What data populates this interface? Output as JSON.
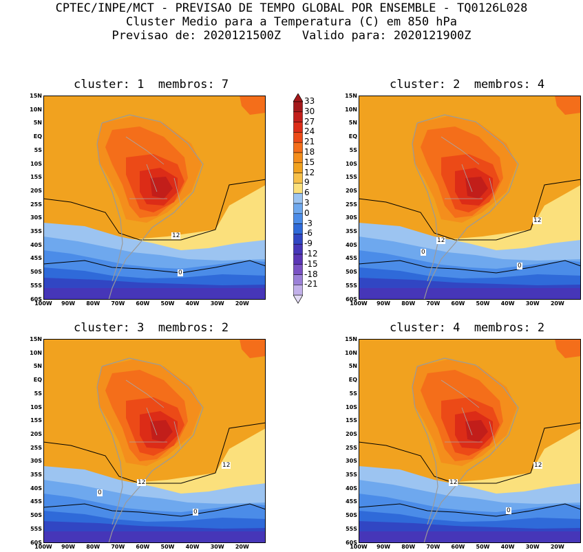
{
  "header": {
    "line1": "CPTEC/INPE/MCT - PREVISAO DE TEMPO GLOBAL POR ENSEMBLE - TQ0126L028",
    "line2": "Cluster Medio para a Temperatura (C) em 850 hPa",
    "line3": "Previsao de: 2020121500Z   Valido para: 2020121900Z"
  },
  "panels": [
    {
      "title": "cluster: 1  membros: 7",
      "contour_12": "12",
      "contour_0": "0"
    },
    {
      "title": "cluster: 2  membros: 4",
      "contour_12": "12",
      "contour_12b": "12",
      "contour_0": "0",
      "contour_0b": "0"
    },
    {
      "title": "cluster: 3  membros: 2",
      "contour_12": "12",
      "contour_12b": "12",
      "contour_0": "0",
      "contour_0b": "0"
    },
    {
      "title": "cluster: 4  membros: 2",
      "contour_12": "12",
      "contour_12b": "12",
      "contour_0": "0"
    }
  ],
  "lat_ticks": [
    "15N",
    "10N",
    "5N",
    "EQ",
    "5S",
    "10S",
    "15S",
    "20S",
    "25S",
    "30S",
    "35S",
    "40S",
    "45S",
    "50S",
    "55S",
    "60S"
  ],
  "lon_ticks": [
    "100W",
    "90W",
    "80W",
    "70W",
    "60W",
    "50W",
    "40W",
    "30W",
    "20W"
  ],
  "colorbar": {
    "labels": [
      "33",
      "30",
      "27",
      "24",
      "21",
      "18",
      "15",
      "12",
      "9",
      "6",
      "3",
      "0",
      "-3",
      "-6",
      "-9",
      "-12",
      "-15",
      "-18",
      "-21"
    ],
    "colors": [
      "#a3181a",
      "#c21e1a",
      "#dc2c17",
      "#ec4a17",
      "#f46e1a",
      "#f48e1c",
      "#f1a21f",
      "#f7c049",
      "#fbe07c",
      "#9cc4f1",
      "#6ea8ee",
      "#4b8ce8",
      "#2f6ad9",
      "#3146c3",
      "#4636b8",
      "#5b36b5",
      "#7a52c4",
      "#9b80d8",
      "#c2b0ea"
    ]
  }
}
